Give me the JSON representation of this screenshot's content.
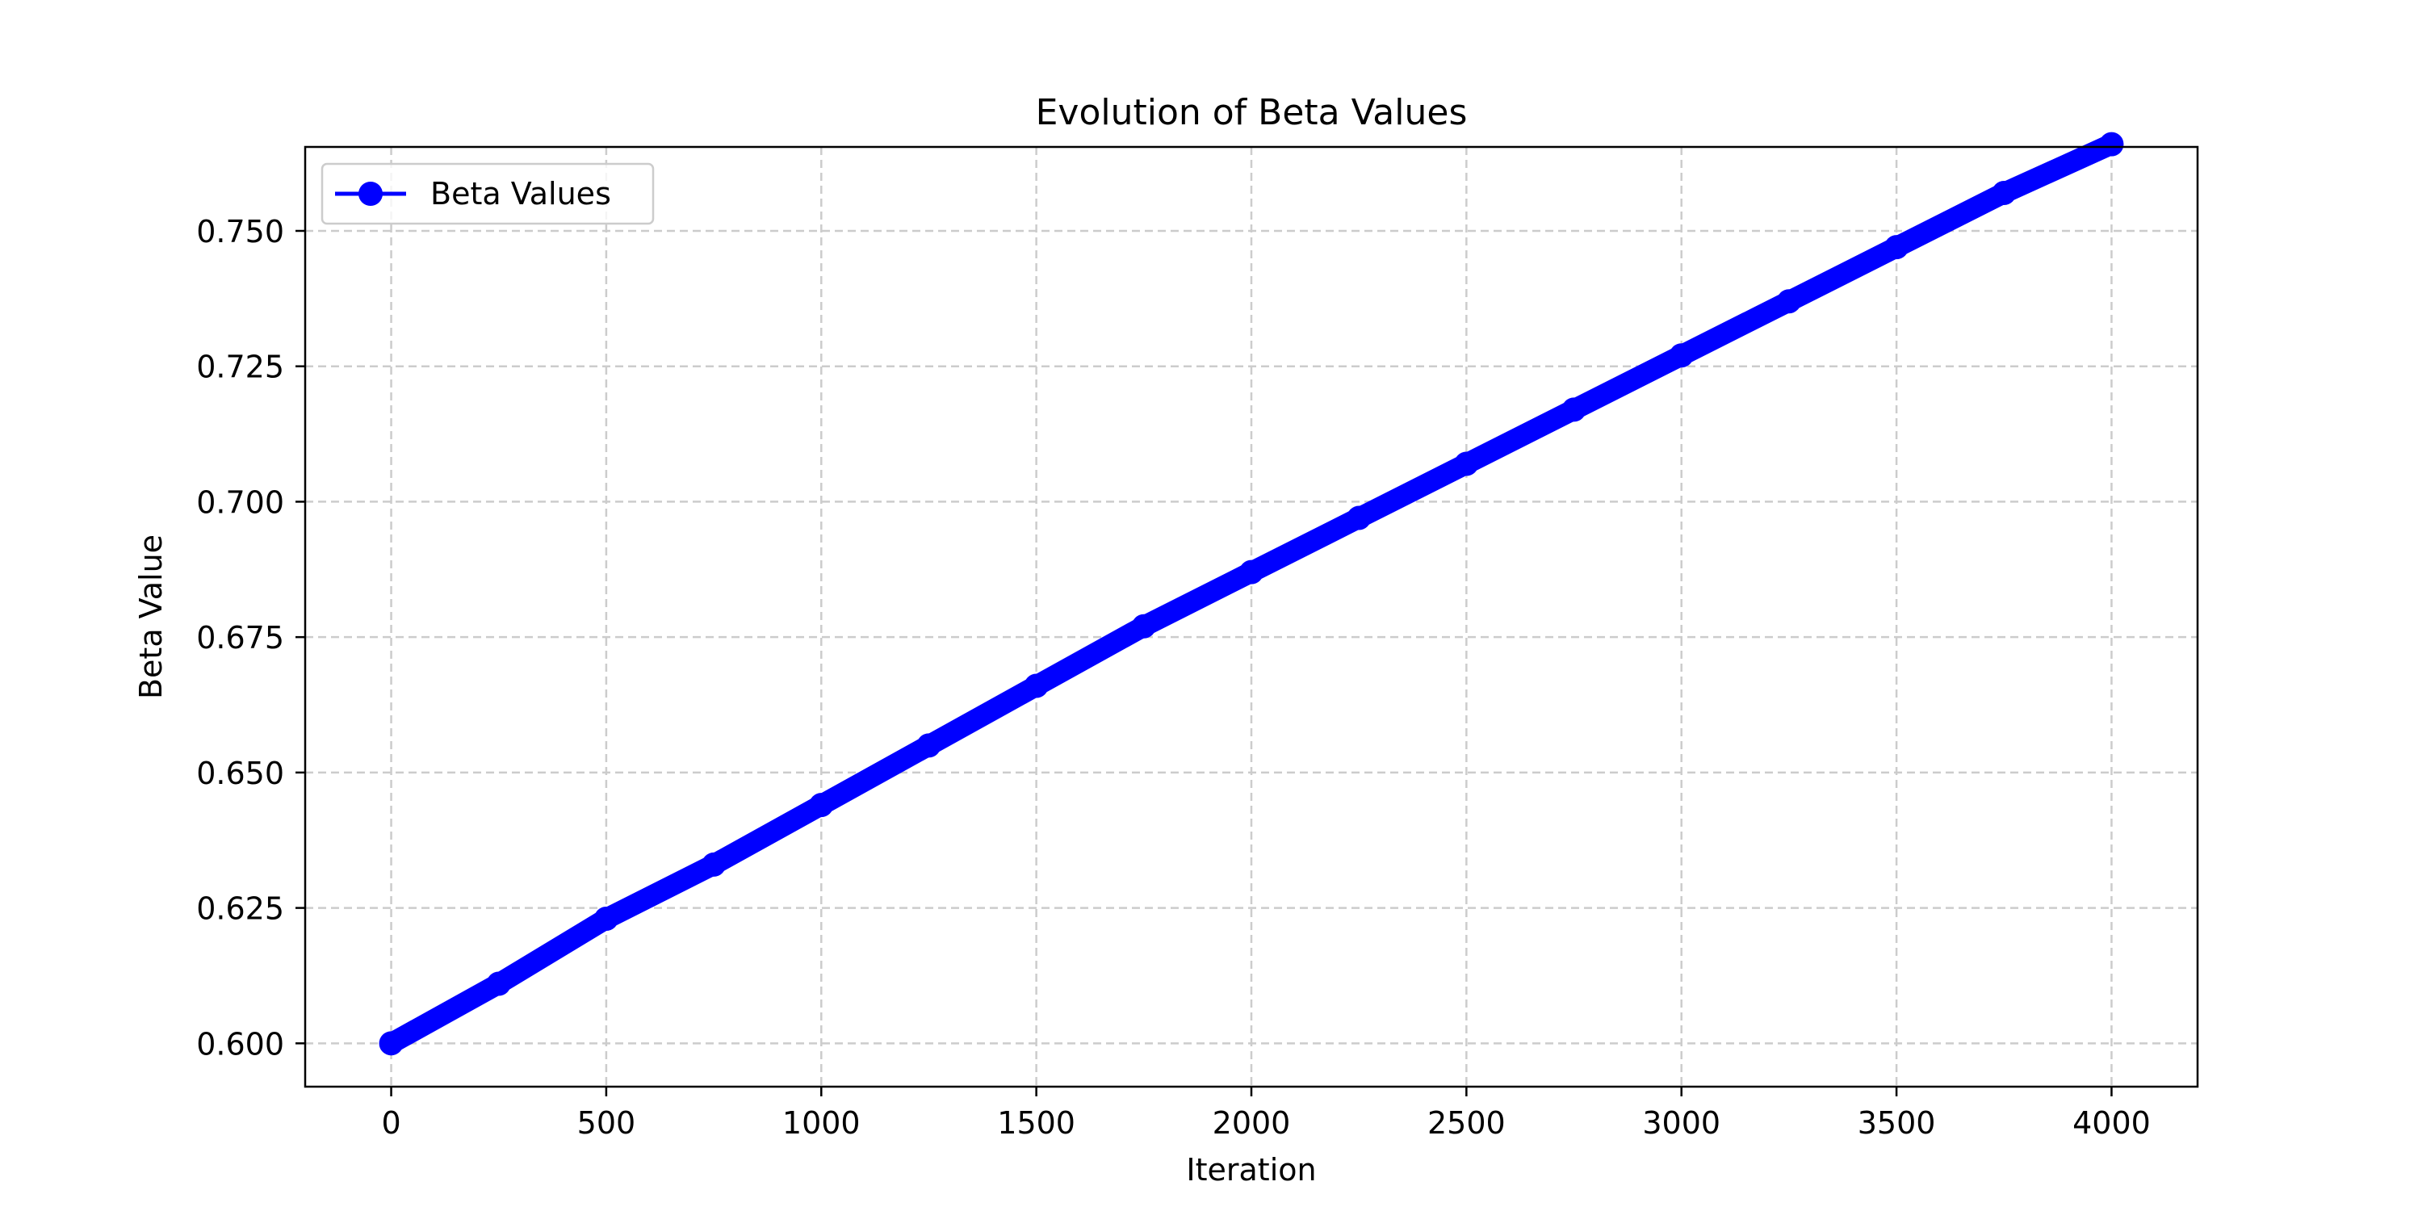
{
  "chart_data": {
    "type": "line",
    "title": "Evolution of Beta Values",
    "xlabel": "Iteration",
    "ylabel": "Beta Value",
    "xlim": [
      -200,
      4200
    ],
    "ylim": [
      0.592,
      0.7655
    ],
    "xticks": [
      0,
      500,
      1000,
      1500,
      2000,
      2500,
      3000,
      3500,
      4000
    ],
    "xtick_labels": [
      "0",
      "500",
      "1000",
      "1500",
      "2000",
      "2500",
      "3000",
      "3500",
      "4000"
    ],
    "yticks": [
      0.6,
      0.625,
      0.65,
      0.675,
      0.7,
      0.725,
      0.75
    ],
    "ytick_labels": [
      "0.600",
      "0.625",
      "0.650",
      "0.675",
      "0.700",
      "0.725",
      "0.750"
    ],
    "grid": true,
    "legend_position": "top-left",
    "series": [
      {
        "name": "Beta Values",
        "color": "#0000ff",
        "marker": "circle",
        "x": [
          0,
          250,
          500,
          750,
          1000,
          1250,
          1500,
          1750,
          2000,
          2250,
          2500,
          2750,
          3000,
          3250,
          3500,
          3750,
          4000
        ],
        "values": [
          0.6,
          0.611,
          0.623,
          0.633,
          0.644,
          0.655,
          0.666,
          0.677,
          0.687,
          0.697,
          0.707,
          0.717,
          0.727,
          0.737,
          0.747,
          0.757,
          0.766
        ]
      }
    ]
  }
}
